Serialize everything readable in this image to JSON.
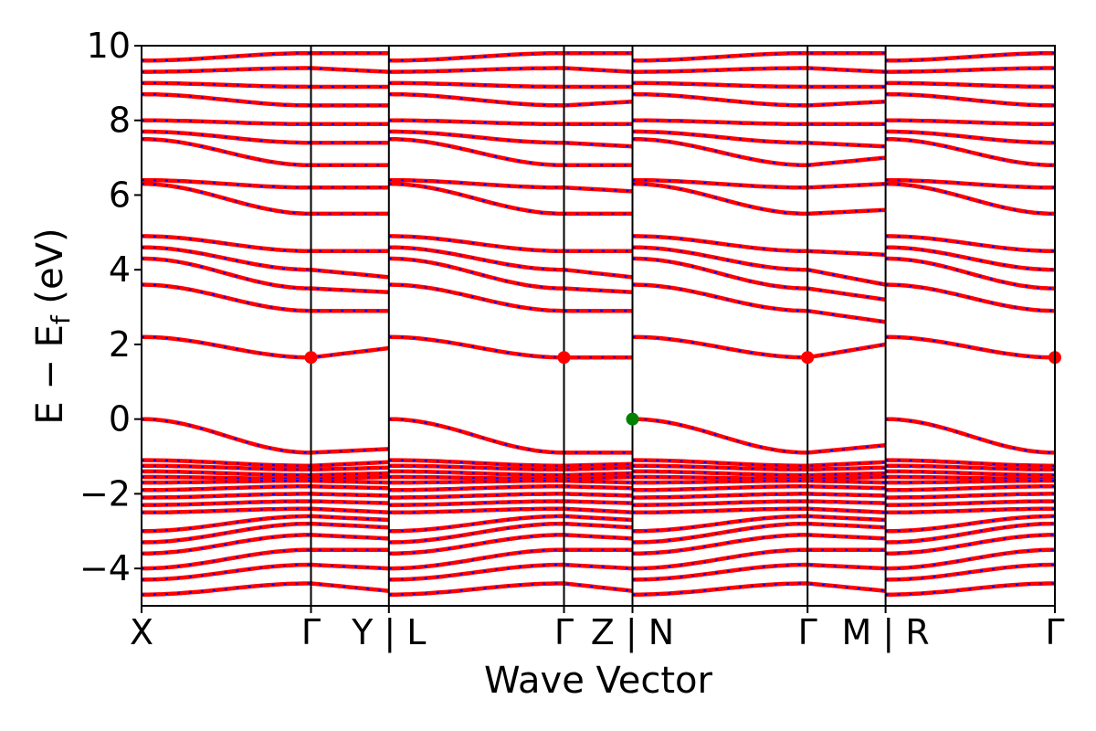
{
  "chart_data": {
    "type": "line",
    "title": "",
    "xlabel": "Wave Vector",
    "ylabel": "E − E",
    "ylabel_sub": "f",
    "ylabel_unit": " (eV)",
    "ylim": [
      -5,
      10
    ],
    "yticks": [
      -4,
      -2,
      0,
      2,
      4,
      6,
      8,
      10
    ],
    "ytick_labels": [
      "−4",
      "−2",
      "0",
      "2",
      "4",
      "6",
      "8",
      "10"
    ],
    "xlim": [
      0,
      1
    ],
    "high_symmetry_points": [
      {
        "label": "X",
        "x": 0.0
      },
      {
        "label": "Γ",
        "x": 0.1855
      },
      {
        "label": "Y | L",
        "x": 0.2708
      },
      {
        "label": "Γ",
        "x": 0.4625
      },
      {
        "label": "Z | N",
        "x": 0.5375
      },
      {
        "label": "Γ",
        "x": 0.7292
      },
      {
        "label": "M | R",
        "x": 0.8146
      },
      {
        "label": "Γ",
        "x": 1.0
      }
    ],
    "segment_boundaries": [
      0.0,
      0.1855,
      0.2708,
      0.4625,
      0.5375,
      0.7292,
      0.8146,
      1.0
    ],
    "series_colors": {
      "bands_a": "#ff0000",
      "bands_b": "#0000ff"
    },
    "markers": [
      {
        "kind": "CBM",
        "x": 0.1855,
        "y": 1.65,
        "color": "#ff0000"
      },
      {
        "kind": "CBM",
        "x": 0.4625,
        "y": 1.65,
        "color": "#ff0000"
      },
      {
        "kind": "CBM",
        "x": 0.7292,
        "y": 1.65,
        "color": "#ff0000"
      },
      {
        "kind": "CBM",
        "x": 1.0,
        "y": 1.65,
        "color": "#ff0000"
      },
      {
        "kind": "VBM",
        "x": 0.5375,
        "y": 0.0,
        "color": "#008000"
      }
    ],
    "bands": [
      {
        "segments": [
          [
            -0.0,
            -0.9,
            -0.8
          ],
          [
            0.0,
            -0.9,
            -0.9
          ],
          [
            0.0,
            -0.9,
            -0.7
          ],
          [
            0.0,
            -0.9,
            -0.9
          ]
        ]
      },
      {
        "segments": [
          [
            -1.1,
            -1.25,
            -1.15
          ],
          [
            -1.1,
            -1.25,
            -1.2
          ],
          [
            -1.1,
            -1.25,
            -1.15
          ],
          [
            -1.1,
            -1.25,
            -1.2
          ]
        ]
      },
      {
        "segments": [
          [
            -1.25,
            -1.35,
            -1.3
          ],
          [
            -1.25,
            -1.35,
            -1.3
          ],
          [
            -1.25,
            -1.35,
            -1.3
          ],
          [
            -1.25,
            -1.35,
            -1.3
          ]
        ]
      },
      {
        "segments": [
          [
            -1.4,
            -1.5,
            -1.45
          ],
          [
            -1.4,
            -1.5,
            -1.45
          ],
          [
            -1.4,
            -1.5,
            -1.45
          ],
          [
            -1.4,
            -1.5,
            -1.45
          ]
        ]
      },
      {
        "segments": [
          [
            -1.55,
            -1.6,
            -1.55
          ],
          [
            -1.55,
            -1.6,
            -1.55
          ],
          [
            -1.55,
            -1.6,
            -1.55
          ],
          [
            -1.55,
            -1.6,
            -1.55
          ]
        ]
      },
      {
        "segments": [
          [
            -1.7,
            -1.65,
            -1.7
          ],
          [
            -1.7,
            -1.65,
            -1.7
          ],
          [
            -1.7,
            -1.65,
            -1.7
          ],
          [
            -1.7,
            -1.65,
            -1.7
          ]
        ]
      },
      {
        "segments": [
          [
            -1.9,
            -1.8,
            -1.85
          ],
          [
            -1.9,
            -1.8,
            -1.85
          ],
          [
            -1.9,
            -1.8,
            -1.85
          ],
          [
            -1.9,
            -1.8,
            -1.85
          ]
        ]
      },
      {
        "segments": [
          [
            -2.1,
            -2.0,
            -2.05
          ],
          [
            -2.1,
            -2.0,
            -2.05
          ],
          [
            -2.1,
            -2.0,
            -2.05
          ],
          [
            -2.1,
            -2.0,
            -2.05
          ]
        ]
      },
      {
        "segments": [
          [
            -2.3,
            -2.2,
            -2.25
          ],
          [
            -2.3,
            -2.2,
            -2.25
          ],
          [
            -2.3,
            -2.2,
            -2.25
          ],
          [
            -2.3,
            -2.2,
            -2.25
          ]
        ]
      },
      {
        "segments": [
          [
            -2.5,
            -2.4,
            -2.5
          ],
          [
            -2.5,
            -2.4,
            -2.5
          ],
          [
            -2.5,
            -2.4,
            -2.5
          ],
          [
            -2.5,
            -2.4,
            -2.5
          ]
        ]
      },
      {
        "segments": [
          [
            -3.0,
            -2.6,
            -2.7
          ],
          [
            -3.0,
            -2.6,
            -2.7
          ],
          [
            -3.0,
            -2.6,
            -2.7
          ],
          [
            -3.0,
            -2.6,
            -2.7
          ]
        ]
      },
      {
        "segments": [
          [
            -3.3,
            -2.8,
            -2.9
          ],
          [
            -3.3,
            -2.8,
            -2.9
          ],
          [
            -3.3,
            -2.8,
            -2.9
          ],
          [
            -3.3,
            -2.8,
            -2.9
          ]
        ]
      },
      {
        "segments": [
          [
            -3.6,
            -3.1,
            -3.2
          ],
          [
            -3.6,
            -3.1,
            -3.2
          ],
          [
            -3.6,
            -3.1,
            -3.2
          ],
          [
            -3.6,
            -3.1,
            -3.2
          ]
        ]
      },
      {
        "segments": [
          [
            -4.0,
            -3.5,
            -3.5
          ],
          [
            -4.0,
            -3.5,
            -3.5
          ],
          [
            -4.0,
            -3.5,
            -3.5
          ],
          [
            -4.0,
            -3.5,
            -3.5
          ]
        ]
      },
      {
        "segments": [
          [
            -4.3,
            -3.9,
            -4.0
          ],
          [
            -4.3,
            -3.9,
            -4.0
          ],
          [
            -4.3,
            -3.9,
            -4.0
          ],
          [
            -4.3,
            -3.9,
            -4.0
          ]
        ]
      },
      {
        "segments": [
          [
            -4.7,
            -4.4,
            -4.6
          ],
          [
            -4.7,
            -4.4,
            -4.6
          ],
          [
            -4.7,
            -4.4,
            -4.6
          ],
          [
            -4.7,
            -4.4,
            -4.6
          ]
        ]
      },
      {
        "segments": [
          [
            2.2,
            1.65,
            1.9
          ],
          [
            2.2,
            1.65,
            1.65
          ],
          [
            2.2,
            1.65,
            2.0
          ],
          [
            2.2,
            1.65,
            1.65
          ]
        ]
      },
      {
        "segments": [
          [
            3.6,
            2.9,
            2.9
          ],
          [
            3.6,
            2.9,
            2.9
          ],
          [
            3.6,
            2.9,
            2.6
          ],
          [
            3.6,
            2.9,
            2.9
          ]
        ]
      },
      {
        "segments": [
          [
            4.3,
            3.5,
            3.4
          ],
          [
            4.3,
            3.5,
            3.4
          ],
          [
            4.3,
            3.5,
            3.2
          ],
          [
            4.3,
            3.5,
            3.4
          ]
        ]
      },
      {
        "segments": [
          [
            4.6,
            4.0,
            3.8
          ],
          [
            4.6,
            4.0,
            3.8
          ],
          [
            4.6,
            4.0,
            3.6
          ],
          [
            4.6,
            4.0,
            3.8
          ]
        ]
      },
      {
        "segments": [
          [
            4.9,
            4.5,
            4.5
          ],
          [
            4.9,
            4.5,
            4.5
          ],
          [
            4.9,
            4.5,
            4.4
          ],
          [
            4.9,
            4.5,
            4.5
          ]
        ]
      },
      {
        "segments": [
          [
            6.3,
            5.5,
            5.5
          ],
          [
            6.3,
            5.5,
            5.5
          ],
          [
            6.3,
            5.5,
            5.6
          ],
          [
            6.3,
            5.5,
            5.5
          ]
        ]
      },
      {
        "segments": [
          [
            6.4,
            6.2,
            6.2
          ],
          [
            6.4,
            6.2,
            6.1
          ],
          [
            6.4,
            6.2,
            6.3
          ],
          [
            6.4,
            6.2,
            6.2
          ]
        ]
      },
      {
        "segments": [
          [
            7.5,
            6.8,
            6.8
          ],
          [
            7.5,
            6.8,
            6.8
          ],
          [
            7.5,
            6.8,
            7.0
          ],
          [
            7.5,
            6.8,
            6.8
          ]
        ]
      },
      {
        "segments": [
          [
            7.7,
            7.4,
            7.4
          ],
          [
            7.7,
            7.4,
            7.3
          ],
          [
            7.7,
            7.4,
            7.3
          ],
          [
            7.7,
            7.4,
            7.4
          ]
        ]
      },
      {
        "segments": [
          [
            8.0,
            7.9,
            7.9
          ],
          [
            8.0,
            7.9,
            7.9
          ],
          [
            8.0,
            7.9,
            7.9
          ],
          [
            8.0,
            7.9,
            7.9
          ]
        ]
      },
      {
        "segments": [
          [
            8.7,
            8.4,
            8.4
          ],
          [
            8.7,
            8.4,
            8.5
          ],
          [
            8.7,
            8.4,
            8.5
          ],
          [
            8.7,
            8.4,
            8.4
          ]
        ]
      },
      {
        "segments": [
          [
            9.0,
            8.9,
            8.9
          ],
          [
            9.0,
            8.9,
            8.9
          ],
          [
            9.0,
            8.9,
            8.9
          ],
          [
            9.0,
            8.9,
            8.9
          ]
        ]
      },
      {
        "segments": [
          [
            9.3,
            9.4,
            9.3
          ],
          [
            9.3,
            9.4,
            9.3
          ],
          [
            9.3,
            9.4,
            9.3
          ],
          [
            9.3,
            9.4,
            9.3
          ]
        ]
      },
      {
        "segments": [
          [
            9.6,
            9.8,
            9.8
          ],
          [
            9.6,
            9.8,
            9.8
          ],
          [
            9.6,
            9.8,
            9.8
          ],
          [
            9.6,
            9.8,
            9.8
          ]
        ]
      }
    ]
  }
}
